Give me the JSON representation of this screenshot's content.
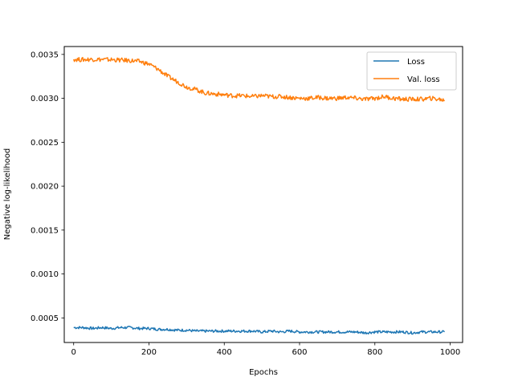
{
  "chart_data": {
    "type": "line",
    "title": "",
    "xlabel": "Epochs",
    "ylabel": "Negative log-likelihood",
    "xlim": [
      -25,
      1033
    ],
    "ylim": [
      0.00022,
      0.00359
    ],
    "xticks": [
      0,
      200,
      400,
      600,
      800,
      1000
    ],
    "xtick_labels": [
      "0",
      "200",
      "400",
      "600",
      "800",
      "1000"
    ],
    "yticks": [
      0.0005,
      0.001,
      0.0015,
      0.002,
      0.0025,
      0.003,
      0.0035
    ],
    "ytick_labels": [
      "0.0005",
      "0.0010",
      "0.0015",
      "0.0020",
      "0.0025",
      "0.0030",
      "0.0035"
    ],
    "grid": false,
    "legend_position": "top-right",
    "series": [
      {
        "name": "Loss",
        "color": "#1f77b4",
        "x": [
          0,
          25,
          50,
          75,
          100,
          125,
          150,
          175,
          200,
          225,
          250,
          275,
          300,
          325,
          350,
          375,
          400,
          425,
          450,
          475,
          500,
          525,
          550,
          575,
          600,
          625,
          650,
          675,
          700,
          725,
          750,
          775,
          800,
          825,
          850,
          875,
          900,
          925,
          950,
          985
        ],
        "y": [
          0.00039,
          0.00039,
          0.00038,
          0.00039,
          0.00038,
          0.00039,
          0.00039,
          0.00038,
          0.00038,
          0.00037,
          0.00037,
          0.00036,
          0.00036,
          0.00035,
          0.00035,
          0.00035,
          0.00035,
          0.00035,
          0.00035,
          0.00035,
          0.00034,
          0.00035,
          0.00034,
          0.00035,
          0.00034,
          0.00034,
          0.00034,
          0.00034,
          0.00034,
          0.00034,
          0.00034,
          0.00033,
          0.00034,
          0.00034,
          0.00034,
          0.00034,
          0.00033,
          0.00034,
          0.00034,
          0.00034
        ]
      },
      {
        "name": "Val. loss",
        "color": "#ff7f0e",
        "x": [
          0,
          20,
          50,
          100,
          150,
          175,
          200,
          225,
          250,
          275,
          300,
          325,
          350,
          375,
          400,
          425,
          450,
          475,
          500,
          525,
          550,
          575,
          600,
          625,
          650,
          675,
          700,
          725,
          750,
          775,
          800,
          825,
          850,
          875,
          900,
          925,
          950,
          985
        ],
        "y": [
          0.003445,
          0.00344,
          0.003445,
          0.00344,
          0.00343,
          0.00342,
          0.00339,
          0.00333,
          0.00325,
          0.00319,
          0.00313,
          0.0031,
          0.00306,
          0.00305,
          0.00304,
          0.00303,
          0.00303,
          0.00302,
          0.00303,
          0.00302,
          0.00302,
          0.00301,
          0.003,
          0.003,
          0.00301,
          0.003,
          0.003,
          0.00301,
          0.003,
          0.00299,
          0.003,
          0.00302,
          0.003,
          0.00299,
          0.00299,
          0.00299,
          0.003,
          0.00298
        ]
      }
    ]
  }
}
